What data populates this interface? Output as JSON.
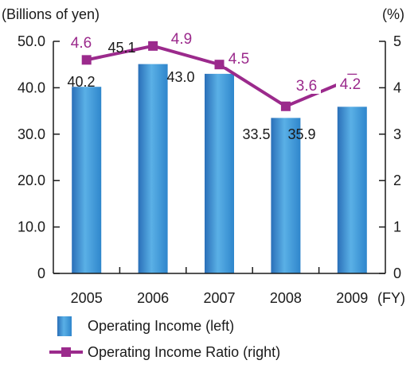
{
  "chart_data": {
    "type": "bar",
    "categories": [
      "2005",
      "2006",
      "2007",
      "2008",
      "2009"
    ],
    "x_unit": "(FY)",
    "left_axis": {
      "unit": "(Billions of yen)",
      "range": [
        0,
        50
      ],
      "ticks": [
        "0",
        "10.0",
        "20.0",
        "30.0",
        "40.0",
        "50.0"
      ]
    },
    "right_axis": {
      "unit": "(%)",
      "range": [
        0,
        5
      ],
      "ticks": [
        "0",
        "1",
        "2",
        "3",
        "4",
        "5"
      ]
    },
    "series": [
      {
        "name": "Operating Income (left)",
        "kind": "bar",
        "axis": "left",
        "values": [
          40.2,
          45.1,
          43.0,
          33.5,
          35.9
        ],
        "labels": [
          "40.2",
          "45.1",
          "43.0",
          "33.5",
          "35.9"
        ],
        "color": "#3a8fd0"
      },
      {
        "name": "Operating Income Ratio (right)",
        "kind": "line",
        "axis": "right",
        "values": [
          4.6,
          4.9,
          4.5,
          3.6,
          4.2
        ],
        "labels": [
          "4.6",
          "4.9",
          "4.5",
          "3.6",
          "4.2"
        ],
        "color": "#9b2a8c"
      }
    ],
    "grid": false,
    "legend_position": "bottom-center"
  }
}
